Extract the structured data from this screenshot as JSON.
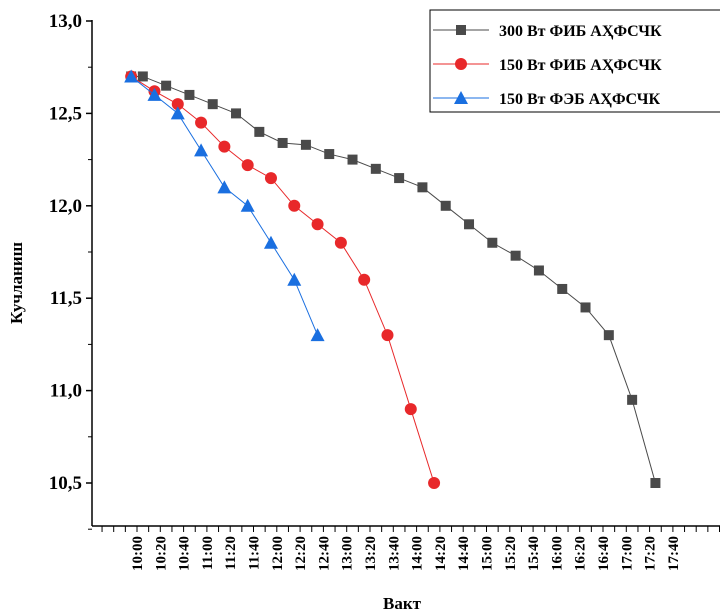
{
  "chart_data": {
    "type": "line",
    "xlabel": "Вакт",
    "ylabel": "Кучланиш",
    "ylim": [
      10.2,
      13.0
    ],
    "yticks": [
      "13,0",
      "12,5",
      "12,0",
      "11,5",
      "11,0",
      "10,5"
    ],
    "categories": [
      "10:00",
      "10:20",
      "10:40",
      "11:00",
      "11:20",
      "11:40",
      "12:00",
      "12:20",
      "12:40",
      "13:00",
      "13:20",
      "13:40",
      "14:00",
      "14:20",
      "14:40",
      "15:00",
      "15:20",
      "15:40",
      "16:00",
      "16:20",
      "16:40",
      "17:00",
      "17:20",
      "17:40"
    ],
    "legend_position": "top-right",
    "series": [
      {
        "name": "300 Вт ФИБ АҲФСЧК",
        "color": "#4a4a4a",
        "marker": "square",
        "points": [
          {
            "x": "09:55",
            "y": 12.7
          },
          {
            "x": "10:05",
            "y": 12.7
          },
          {
            "x": "10:25",
            "y": 12.65
          },
          {
            "x": "10:45",
            "y": 12.6
          },
          {
            "x": "11:05",
            "y": 12.55
          },
          {
            "x": "11:25",
            "y": 12.5
          },
          {
            "x": "11:45",
            "y": 12.4
          },
          {
            "x": "12:05",
            "y": 12.34
          },
          {
            "x": "12:25",
            "y": 12.33
          },
          {
            "x": "12:45",
            "y": 12.28
          },
          {
            "x": "13:05",
            "y": 12.25
          },
          {
            "x": "13:25",
            "y": 12.2
          },
          {
            "x": "13:45",
            "y": 12.15
          },
          {
            "x": "14:05",
            "y": 12.1
          },
          {
            "x": "14:25",
            "y": 12.0
          },
          {
            "x": "14:45",
            "y": 11.9
          },
          {
            "x": "15:05",
            "y": 11.8
          },
          {
            "x": "15:25",
            "y": 11.73
          },
          {
            "x": "15:45",
            "y": 11.65
          },
          {
            "x": "16:05",
            "y": 11.55
          },
          {
            "x": "16:25",
            "y": 11.45
          },
          {
            "x": "16:45",
            "y": 11.3
          },
          {
            "x": "17:05",
            "y": 10.95
          },
          {
            "x": "17:25",
            "y": 10.5
          }
        ]
      },
      {
        "name": "150 Вт  ФИБ АҲФСЧК",
        "color": "#e8282a",
        "marker": "circle",
        "points": [
          {
            "x": "09:55",
            "y": 12.7
          },
          {
            "x": "10:15",
            "y": 12.62
          },
          {
            "x": "10:35",
            "y": 12.55
          },
          {
            "x": "10:55",
            "y": 12.45
          },
          {
            "x": "11:15",
            "y": 12.32
          },
          {
            "x": "11:35",
            "y": 12.22
          },
          {
            "x": "11:55",
            "y": 12.15
          },
          {
            "x": "12:15",
            "y": 12.0
          },
          {
            "x": "12:35",
            "y": 11.9
          },
          {
            "x": "12:55",
            "y": 11.8
          },
          {
            "x": "13:15",
            "y": 11.6
          },
          {
            "x": "13:35",
            "y": 11.3
          },
          {
            "x": "13:55",
            "y": 10.9
          },
          {
            "x": "14:15",
            "y": 10.5
          }
        ]
      },
      {
        "name": "150 Вт  ФЭБ АҲФСЧК",
        "color": "#1a6fe0",
        "marker": "triangle",
        "points": [
          {
            "x": "09:55",
            "y": 12.7
          },
          {
            "x": "10:15",
            "y": 12.6
          },
          {
            "x": "10:35",
            "y": 12.5
          },
          {
            "x": "10:55",
            "y": 12.3
          },
          {
            "x": "11:15",
            "y": 12.1
          },
          {
            "x": "11:35",
            "y": 12.0
          },
          {
            "x": "11:55",
            "y": 11.8
          },
          {
            "x": "12:15",
            "y": 11.6
          },
          {
            "x": "12:35",
            "y": 11.3
          }
        ]
      }
    ]
  }
}
